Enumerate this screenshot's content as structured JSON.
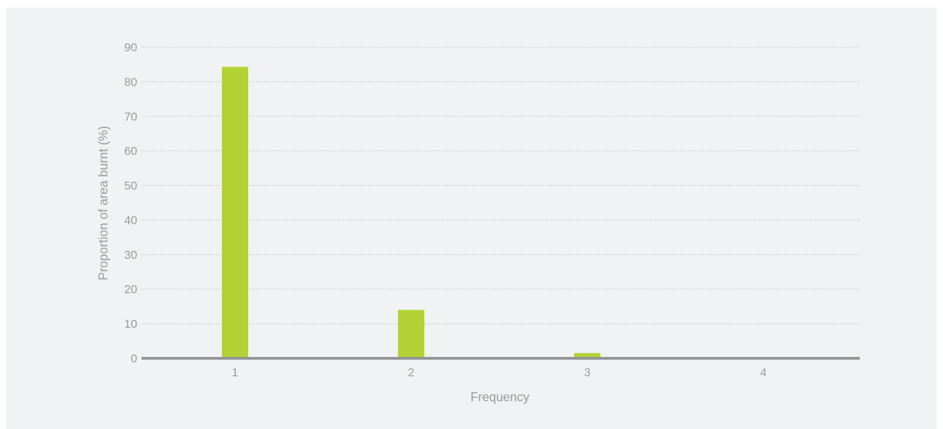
{
  "chart_data": {
    "type": "bar",
    "title": "",
    "xlabel": "Frequency",
    "ylabel": "Proportion of area burnt (%)",
    "categories": [
      "1",
      "2",
      "3",
      "4"
    ],
    "values": [
      84.3,
      14.0,
      1.5,
      0.1
    ],
    "ylim": [
      0,
      90
    ],
    "yticks": [
      0,
      10,
      20,
      30,
      40,
      50,
      60,
      70,
      80,
      90
    ],
    "grid": true,
    "legend": "none"
  },
  "colors": {
    "bar": "#b3d235",
    "gridline": "#a7a9ac",
    "axis": "#939598",
    "text": "#9a9b9d",
    "background": "#f1f2f3"
  }
}
